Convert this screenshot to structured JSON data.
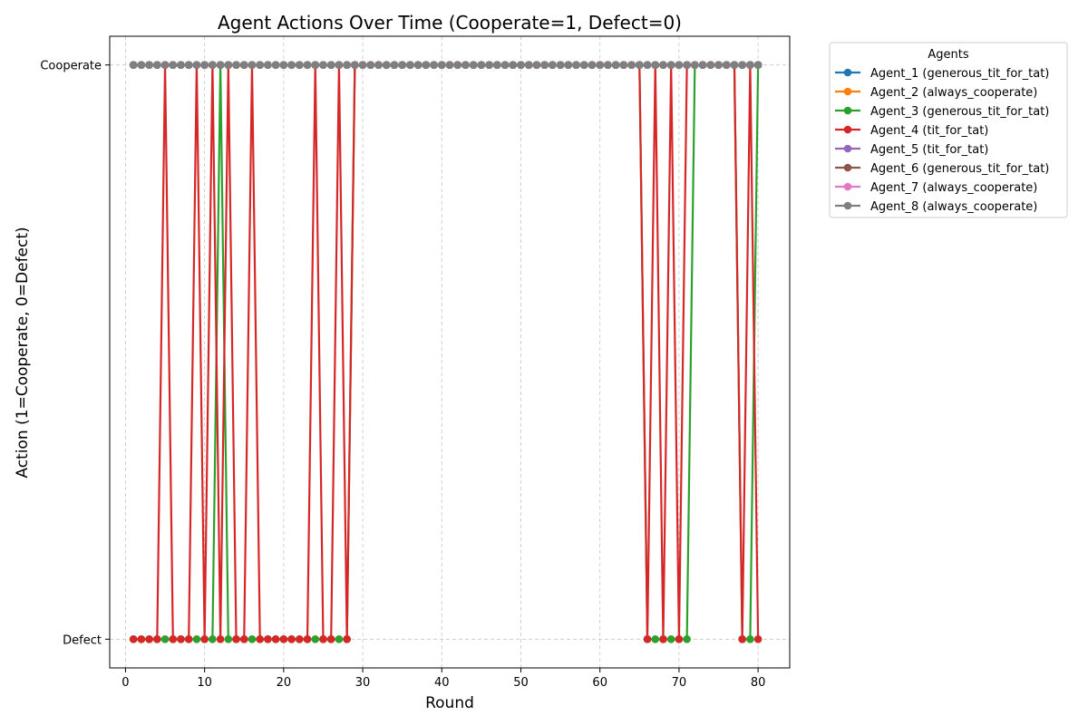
{
  "chart_data": {
    "type": "line",
    "title": "Agent Actions Over Time (Cooperate=1, Defect=0)",
    "xlabel": "Round",
    "ylabel": "Action (1=Cooperate, 0=Defect)",
    "xlim": [
      -2,
      84
    ],
    "ylim": [
      -0.05,
      1.05
    ],
    "xticks": [
      0,
      10,
      20,
      30,
      40,
      50,
      60,
      70,
      80
    ],
    "yticks": [
      {
        "value": 0,
        "label": "Defect"
      },
      {
        "value": 1,
        "label": "Cooperate"
      }
    ],
    "grid": true,
    "legend_title": "Agents",
    "legend_placement": "outside-upper-right",
    "x": [
      1,
      2,
      3,
      4,
      5,
      6,
      7,
      8,
      9,
      10,
      11,
      12,
      13,
      14,
      15,
      16,
      17,
      18,
      19,
      20,
      21,
      22,
      23,
      24,
      25,
      26,
      27,
      28,
      29,
      30,
      31,
      32,
      33,
      34,
      35,
      36,
      37,
      38,
      39,
      40,
      41,
      42,
      43,
      44,
      45,
      46,
      47,
      48,
      49,
      50,
      51,
      52,
      53,
      54,
      55,
      56,
      57,
      58,
      59,
      60,
      61,
      62,
      63,
      64,
      65,
      66,
      67,
      68,
      69,
      70,
      71,
      72,
      73,
      74,
      75,
      76,
      77,
      78,
      79,
      80
    ],
    "series": [
      {
        "name": "Agent_1 (generous_tit_for_tat)",
        "color": "#1f77b4",
        "default": 1,
        "zeros": []
      },
      {
        "name": "Agent_2 (always_cooperate)",
        "color": "#ff7f0e",
        "default": 1,
        "zeros": []
      },
      {
        "name": "Agent_3 (generous_tit_for_tat)",
        "color": "#2ca02c",
        "default": 1,
        "zeros": [
          1,
          2,
          3,
          4,
          5,
          6,
          7,
          8,
          9,
          10,
          11,
          13,
          14,
          15,
          16,
          17,
          18,
          19,
          20,
          21,
          22,
          23,
          24,
          25,
          26,
          27,
          28,
          66,
          67,
          68,
          69,
          70,
          71,
          78,
          79
        ]
      },
      {
        "name": "Agent_4 (tit_for_tat)",
        "color": "#d62728",
        "default": 1,
        "zeros": [
          1,
          2,
          3,
          4,
          6,
          7,
          8,
          10,
          12,
          14,
          15,
          17,
          18,
          19,
          20,
          21,
          22,
          23,
          25,
          26,
          28,
          66,
          68,
          70,
          78,
          80
        ]
      },
      {
        "name": "Agent_5 (tit_for_tat)",
        "color": "#9467bd",
        "default": 1,
        "zeros": []
      },
      {
        "name": "Agent_6 (generous_tit_for_tat)",
        "color": "#8c564b",
        "default": 1,
        "zeros": []
      },
      {
        "name": "Agent_7 (always_cooperate)",
        "color": "#e377c2",
        "default": 1,
        "zeros": []
      },
      {
        "name": "Agent_8 (always_cooperate)",
        "color": "#7f7f7f",
        "default": 1,
        "zeros": []
      }
    ]
  }
}
